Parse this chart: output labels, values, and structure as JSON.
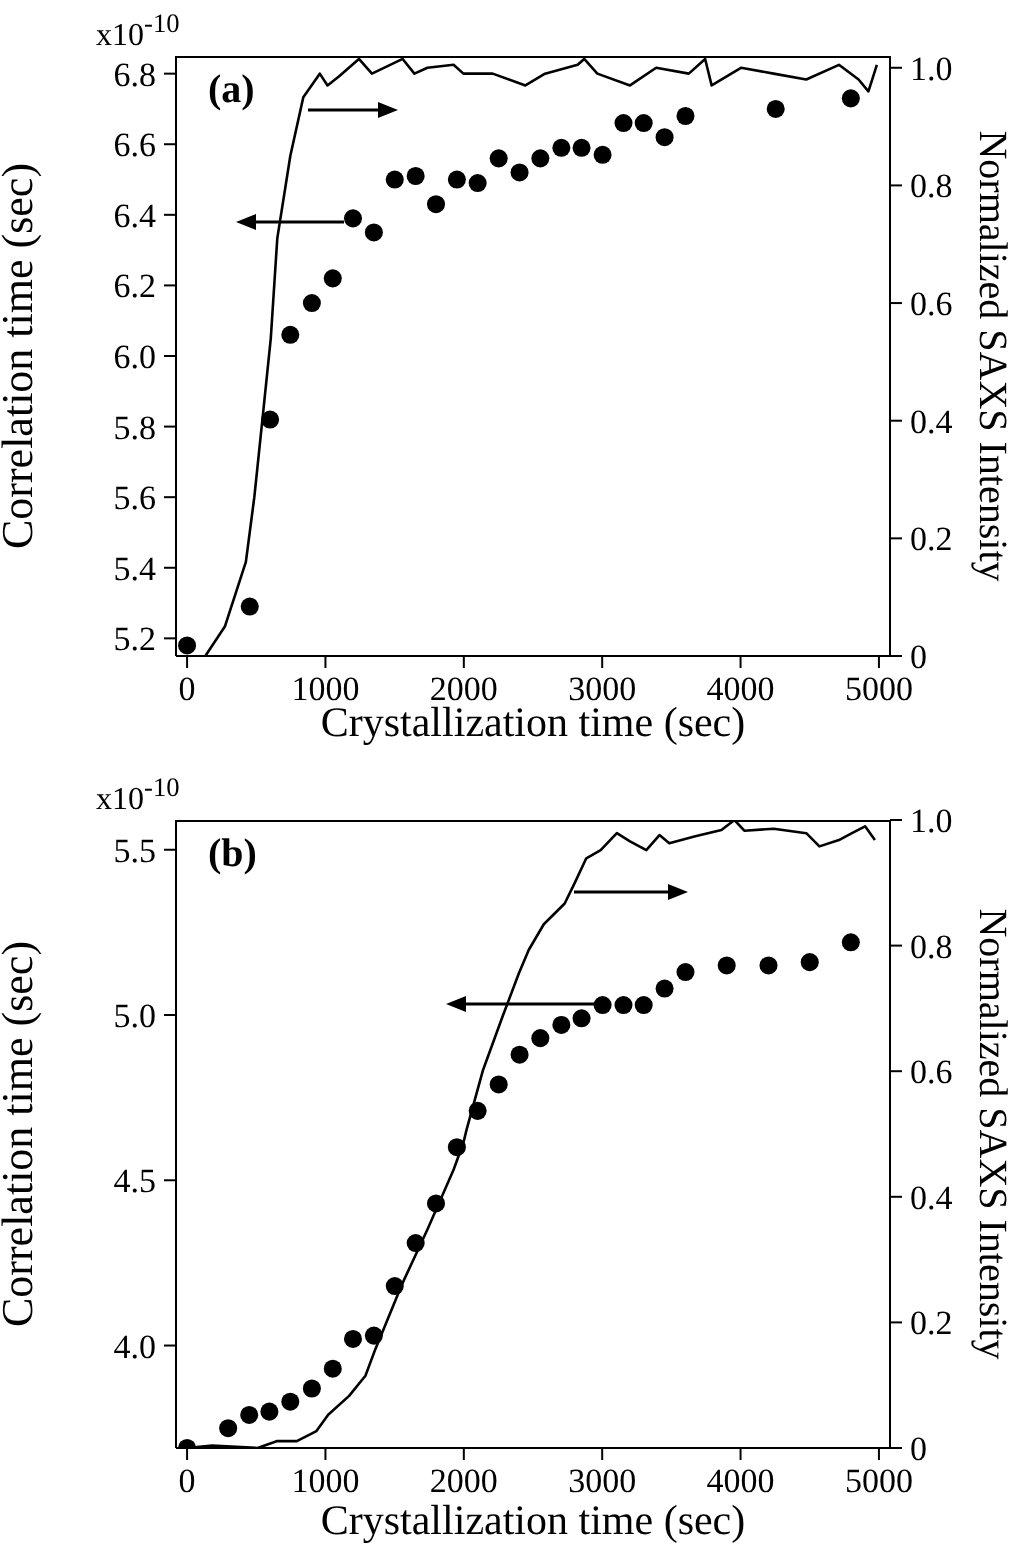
{
  "chart_data": [
    {
      "type": "scatter",
      "title": "(a)",
      "xlabel": "Crystallization time (sec)",
      "ylabel": "Correlation time (sec)",
      "y2label": "Normalized SAXS Intensity",
      "xlim": [
        -80,
        5080
      ],
      "xticks": [
        0,
        1000,
        2000,
        3000,
        4000,
        5000
      ],
      "ylim": [
        5.15,
        6.85
      ],
      "annotations": [
        "x10$^{-10}$"
      ],
      "yticks": [
        6.8,
        6.6,
        6.4,
        6.2,
        {
          "value": 6,
          "label": "6.0"
        },
        5.8,
        5.6,
        5.4,
        5.2
      ],
      "y2lim": [
        0,
        1.02
      ],
      "y2ticks": [
        0,
        0.2,
        0.4,
        0.6,
        0.8,
        {
          "value": 1,
          "label": "1.0"
        }
      ],
      "series": [
        {
          "color": "#000000",
          "marker": "circle",
          "x": [
            0,
            453,
            600,
            746,
            902,
            1053,
            1199,
            1350,
            1501,
            1652,
            1799,
            1950,
            2100,
            2252,
            2403,
            2553,
            2705,
            2851,
            3003,
            3154,
            3300,
            3451,
            3602,
            4254,
            4797
          ],
          "values": [
            5.18,
            5.29,
            5.82,
            6.06,
            6.15,
            6.22,
            6.39,
            6.35,
            6.5,
            6.51,
            6.43,
            6.5,
            6.49,
            6.56,
            6.52,
            6.56,
            6.59,
            6.59,
            6.57,
            6.66,
            6.66,
            6.62,
            6.68,
            6.7,
            6.73
          ]
        },
        {
          "type": "line",
          "axis": "y2",
          "color": "#000000",
          "marker": "none",
          "x": [
            132,
            273,
            425,
            486,
            548,
            605,
            652,
            746,
            840,
            959,
            1015,
            1097,
            1242,
            1336,
            1558,
            1643,
            1737,
            1926,
            1997,
            2209,
            2445,
            2587,
            2823,
            2870,
            2965,
            3201,
            3390,
            3626,
            3744,
            3791,
            4003,
            4239,
            4475,
            4711,
            4853,
            4924,
            4985
          ],
          "values": [
            0,
            0.05,
            0.16,
            0.27,
            0.41,
            0.54,
            0.71,
            0.85,
            0.95,
            0.99,
            0.97,
            0.985,
            1.015,
            0.99,
            1.015,
            0.99,
            1,
            1.005,
            0.99,
            0.99,
            0.97,
            0.99,
            1.005,
            1.015,
            0.99,
            0.97,
            1,
            0.99,
            1.015,
            0.97,
            1,
            0.99,
            0.98,
            1.005,
            0.98,
            0.96,
            1.005
          ]
        }
      ]
    },
    {
      "type": "scatter",
      "title": "(b)",
      "xlabel": "Crystallization time (sec)",
      "ylabel": "Correlation time (sec)",
      "y2label": "Normalized SAXS Intensity",
      "xlim": [
        -80,
        5080
      ],
      "xticks": [
        0,
        1000,
        2000,
        3000,
        4000,
        5000
      ],
      "ylim": [
        3.69,
        5.59
      ],
      "annotations": [
        "x10$^{-10}$"
      ],
      "yticks": [
        5.5,
        {
          "value": 5,
          "label": "5.0"
        },
        4.5,
        {
          "value": 4,
          "label": "4.0"
        }
      ],
      "y2lim": [
        0,
        1
      ],
      "y2ticks": [
        0,
        0.2,
        0.4,
        0.6,
        0.8,
        {
          "value": 1,
          "label": "1.0"
        }
      ],
      "series": [
        {
          "color": "#000000",
          "marker": "circle",
          "x": [
            0,
            297,
            449,
            595,
            746,
            902,
            1053,
            1199,
            1350,
            1501,
            1652,
            1799,
            1950,
            2100,
            2252,
            2403,
            2553,
            2705,
            2851,
            3003,
            3154,
            3300,
            3451,
            3602,
            3900,
            4202,
            4500,
            4797
          ],
          "values": [
            3.69,
            3.75,
            3.79,
            3.8,
            3.83,
            3.87,
            3.93,
            4.02,
            4.03,
            4.18,
            4.31,
            4.43,
            4.6,
            4.71,
            4.79,
            4.88,
            4.93,
            4.97,
            4.99,
            5.03,
            5.03,
            5.03,
            5.08,
            5.13,
            5.15,
            5.15,
            5.16,
            5.22
          ]
        },
        {
          "type": "line",
          "axis": "y2",
          "color": "#000000",
          "marker": "none",
          "x": [
            0,
            180,
            510,
            652,
            793,
            935,
            1020,
            1171,
            1289,
            1360,
            1558,
            1737,
            1926,
            1997,
            2020,
            2139,
            2280,
            2398,
            2469,
            2578,
            2729,
            2800,
            2885,
            2989,
            3106,
            3201,
            3319,
            3414,
            3485,
            3673,
            3862,
            3956,
            4027,
            4239,
            4475,
            4570,
            4711,
            4805,
            4900,
            4971
          ],
          "values": [
            0,
            0.004,
            0,
            0.011,
            0.011,
            0.027,
            0.053,
            0.083,
            0.115,
            0.157,
            0.263,
            0.348,
            0.443,
            0.486,
            0.507,
            0.602,
            0.687,
            0.756,
            0.793,
            0.834,
            0.867,
            0.899,
            0.939,
            0.952,
            0.979,
            0.966,
            0.952,
            0.976,
            0.963,
            0.974,
            0.984,
            1,
            0.983,
            0.986,
            0.979,
            0.958,
            0.968,
            0.979,
            0.99,
            0.968
          ]
        }
      ]
    }
  ]
}
